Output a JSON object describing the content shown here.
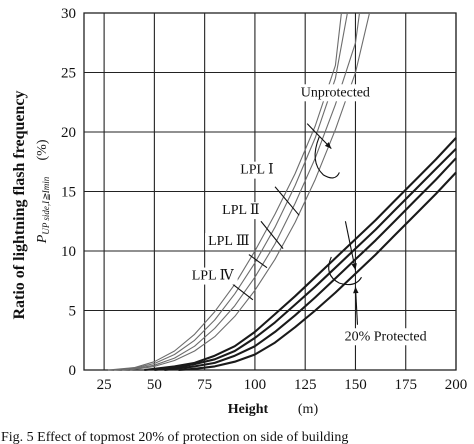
{
  "chart_data": {
    "type": "line",
    "ylabel": "Ratio of lightning flash frequency",
    "ylabel_symbol": "P",
    "ylabel_subscript": "UP side,I≧Imin",
    "ylabel_unit": "(%)",
    "xlabel": "Height",
    "xlabel_unit": "(m)",
    "xlim": [
      15,
      200
    ],
    "ylim": [
      0,
      30
    ],
    "grid": true,
    "x_ticks": [
      "25",
      "50",
      "75",
      "100",
      "125",
      "150",
      "175",
      "200"
    ],
    "y_ticks": [
      "0",
      "5",
      "10",
      "15",
      "20",
      "25",
      "30"
    ],
    "series": [
      {
        "group": "unprotected",
        "x": [
          27,
          40,
          50,
          60,
          70,
          80,
          90,
          100,
          110,
          120,
          130,
          140,
          143
        ],
        "y": [
          0,
          0.2,
          0.7,
          1.6,
          3.0,
          4.9,
          7.2,
          10.0,
          13.1,
          16.5,
          20.5,
          25.6,
          30.0
        ]
      },
      {
        "group": "unprotected",
        "x": [
          30,
          40,
          50,
          60,
          70,
          80,
          90,
          100,
          110,
          120,
          130,
          140,
          146
        ],
        "y": [
          0,
          0.15,
          0.55,
          1.3,
          2.5,
          4.2,
          6.4,
          9.0,
          12.0,
          15.5,
          19.5,
          24.5,
          30.0
        ]
      },
      {
        "group": "unprotected",
        "x": [
          34,
          40,
          50,
          60,
          70,
          80,
          90,
          100,
          110,
          120,
          130,
          140,
          150,
          152
        ],
        "y": [
          0,
          0.1,
          0.4,
          1.0,
          2.0,
          3.5,
          5.4,
          7.8,
          10.6,
          14.0,
          17.8,
          22.3,
          27.5,
          30.0
        ]
      },
      {
        "group": "unprotected",
        "x": [
          38,
          50,
          60,
          70,
          80,
          90,
          100,
          110,
          120,
          130,
          140,
          150,
          157
        ],
        "y": [
          0,
          0.3,
          0.8,
          1.6,
          2.8,
          4.5,
          6.7,
          9.3,
          12.4,
          16.0,
          20.2,
          25.0,
          30.0
        ]
      },
      {
        "group": "protected",
        "x": [
          45,
          60,
          70,
          80,
          90,
          100,
          110,
          120,
          130,
          140,
          150,
          160,
          170,
          180,
          190,
          200
        ],
        "y": [
          0,
          0.3,
          0.6,
          1.2,
          2.0,
          3.2,
          4.7,
          6.2,
          7.8,
          9.4,
          11.0,
          12.6,
          14.3,
          16.0,
          17.7,
          19.5
        ]
      },
      {
        "group": "protected",
        "x": [
          50,
          60,
          70,
          80,
          90,
          100,
          110,
          120,
          130,
          140,
          150,
          160,
          170,
          180,
          190,
          200
        ],
        "y": [
          0,
          0.2,
          0.5,
          0.9,
          1.6,
          2.7,
          4.0,
          5.5,
          7.0,
          8.6,
          10.2,
          11.8,
          13.5,
          15.2,
          16.9,
          18.6
        ]
      },
      {
        "group": "protected",
        "x": [
          55,
          70,
          80,
          90,
          100,
          110,
          120,
          130,
          140,
          150,
          160,
          170,
          180,
          190,
          200
        ],
        "y": [
          0,
          0.3,
          0.6,
          1.2,
          2.0,
          3.2,
          4.6,
          6.1,
          7.7,
          9.3,
          10.9,
          12.6,
          14.3,
          16.0,
          17.8
        ]
      },
      {
        "group": "protected",
        "x": [
          62,
          70,
          80,
          90,
          100,
          110,
          120,
          130,
          140,
          150,
          160,
          170,
          180,
          190,
          200
        ],
        "y": [
          0,
          0.1,
          0.3,
          0.7,
          1.3,
          2.3,
          3.6,
          5.0,
          6.5,
          8.1,
          9.7,
          11.4,
          13.1,
          14.8,
          16.6
        ]
      }
    ],
    "annotations": [
      {
        "text": "Unprotected",
        "x": 140,
        "y": 23.0
      },
      {
        "text": "LPL Ⅰ",
        "x": 101,
        "y": 16.5
      },
      {
        "text": "LPL Ⅱ",
        "x": 93,
        "y": 13.1
      },
      {
        "text": "LPL Ⅲ",
        "x": 87,
        "y": 10.5
      },
      {
        "text": "LPL Ⅳ",
        "x": 79,
        "y": 7.6
      },
      {
        "text": "20%  Protected",
        "x": 165,
        "y": 2.5
      }
    ],
    "caption": "Fig. 5 Effect of topmost 20% of protection on side of building"
  }
}
